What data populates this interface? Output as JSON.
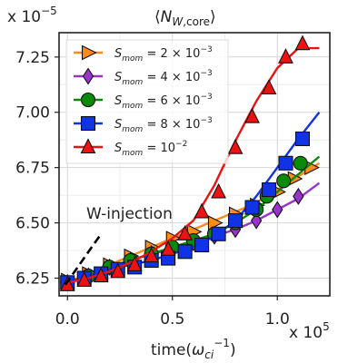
{
  "chart_data": {
    "type": "line",
    "title": "⟨N_W,core⟩",
    "xlabel": "time(ω_ci^-1)",
    "ylabel": "",
    "x_exponent_label": "x 10^5",
    "y_exponent_label": "x 10^-5",
    "xlim": [
      -0.04,
      1.25
    ],
    "ylim": [
      6.17,
      7.36
    ],
    "x_ticks": [
      0.0,
      0.5,
      1.0
    ],
    "x_tick_labels": [
      "0.0",
      "0.5",
      "1.0"
    ],
    "y_ticks": [
      6.25,
      6.5,
      6.75,
      7.0,
      7.25
    ],
    "y_tick_labels": [
      "6.25",
      "6.50",
      "6.75",
      "7.00",
      "7.25"
    ],
    "grid": true,
    "legend_position": "top-left",
    "annotation": "W-injection",
    "series": [
      {
        "name": "S_mom = 2 × 10^-3",
        "color": "#ff8c1a",
        "marker": "triangle-right",
        "x": [
          0.0,
          0.05,
          0.1,
          0.15,
          0.2,
          0.25,
          0.3,
          0.35,
          0.4,
          0.45,
          0.5,
          0.55,
          0.6,
          0.65,
          0.7,
          0.75,
          0.8,
          0.85,
          0.9,
          0.95,
          1.0,
          1.05,
          1.1,
          1.15,
          1.2
        ],
        "y": [
          6.24,
          6.25,
          6.27,
          6.29,
          6.31,
          6.33,
          6.35,
          6.37,
          6.39,
          6.41,
          6.43,
          6.45,
          6.47,
          6.49,
          6.51,
          6.53,
          6.55,
          6.57,
          6.59,
          6.62,
          6.65,
          6.68,
          6.71,
          6.74,
          6.77
        ],
        "marker_x": [
          0.0,
          0.1,
          0.2,
          0.3,
          0.4,
          0.5,
          0.6,
          0.7,
          0.8,
          0.9,
          1.0,
          1.08,
          1.16
        ],
        "marker_y": [
          6.24,
          6.27,
          6.31,
          6.35,
          6.39,
          6.43,
          6.46,
          6.5,
          6.54,
          6.58,
          6.64,
          6.7,
          6.75
        ]
      },
      {
        "name": "S_mom = 4 × 10^-3",
        "color": "#9933cc",
        "marker": "diamond",
        "x": [
          0.0,
          0.1,
          0.2,
          0.3,
          0.4,
          0.5,
          0.6,
          0.7,
          0.8,
          0.9,
          1.0,
          1.1,
          1.2
        ],
        "y": [
          6.23,
          6.26,
          6.3,
          6.33,
          6.36,
          6.38,
          6.41,
          6.44,
          6.47,
          6.51,
          6.56,
          6.61,
          6.68
        ],
        "marker_x": [
          0.0,
          0.1,
          0.2,
          0.3,
          0.4,
          0.5,
          0.6,
          0.7,
          0.8,
          0.9,
          1.0,
          1.1
        ],
        "marker_y": [
          6.23,
          6.26,
          6.3,
          6.33,
          6.36,
          6.38,
          6.41,
          6.44,
          6.47,
          6.51,
          6.56,
          6.62
        ]
      },
      {
        "name": "S_mom = 6 × 10^-3",
        "color": "#0a8a0a",
        "marker": "circle",
        "x": [
          0.0,
          0.1,
          0.2,
          0.3,
          0.4,
          0.5,
          0.6,
          0.7,
          0.8,
          0.9,
          1.0,
          1.1,
          1.2
        ],
        "y": [
          6.23,
          6.26,
          6.3,
          6.33,
          6.36,
          6.39,
          6.42,
          6.45,
          6.5,
          6.56,
          6.64,
          6.72,
          6.8
        ],
        "marker_x": [
          0.0,
          0.1,
          0.2,
          0.3,
          0.4,
          0.5,
          0.6,
          0.7,
          0.8,
          0.9,
          0.95,
          1.03,
          1.11
        ],
        "marker_y": [
          6.23,
          6.26,
          6.3,
          6.33,
          6.36,
          6.39,
          6.42,
          6.45,
          6.5,
          6.56,
          6.62,
          6.69,
          6.77
        ]
      },
      {
        "name": "S_mom = 8 × 10^-3",
        "color": "#1033e6",
        "marker": "square",
        "x": [
          0.0,
          0.1,
          0.2,
          0.3,
          0.4,
          0.5,
          0.6,
          0.7,
          0.8,
          0.9,
          1.0,
          1.1,
          1.2
        ],
        "y": [
          6.23,
          6.26,
          6.29,
          6.31,
          6.33,
          6.36,
          6.39,
          6.44,
          6.51,
          6.62,
          6.75,
          6.88,
          7.0
        ],
        "marker_x": [
          0.0,
          0.08,
          0.16,
          0.24,
          0.32,
          0.4,
          0.48,
          0.56,
          0.64,
          0.72,
          0.8,
          0.88,
          0.96,
          1.04,
          1.12
        ],
        "marker_y": [
          6.23,
          6.25,
          6.27,
          6.29,
          6.3,
          6.33,
          6.34,
          6.37,
          6.4,
          6.45,
          6.51,
          6.57,
          6.65,
          6.77,
          6.88
        ]
      },
      {
        "name": "S_mom = 10^-2",
        "color": "#ee1111",
        "marker": "triangle-up",
        "x": [
          0.0,
          0.1,
          0.2,
          0.3,
          0.4,
          0.5,
          0.6,
          0.7,
          0.8,
          0.9,
          1.0,
          1.1,
          1.2
        ],
        "y": [
          6.23,
          6.25,
          6.28,
          6.32,
          6.37,
          6.43,
          6.51,
          6.67,
          6.87,
          7.05,
          7.2,
          7.29,
          7.29
        ],
        "marker_x": [
          0.0,
          0.08,
          0.16,
          0.24,
          0.32,
          0.4,
          0.48,
          0.56,
          0.64,
          0.72,
          0.8,
          0.88,
          0.96,
          1.04,
          1.12
        ],
        "marker_y": [
          6.22,
          6.24,
          6.26,
          6.28,
          6.31,
          6.35,
          6.38,
          6.45,
          6.55,
          6.64,
          6.84,
          6.98,
          7.11,
          7.25,
          7.31
        ]
      },
      {
        "name": "",
        "color": "#000000",
        "marker": "none",
        "style": "dashed",
        "x": [
          -0.01,
          0.16
        ],
        "y": [
          6.22,
          6.45
        ]
      }
    ]
  }
}
